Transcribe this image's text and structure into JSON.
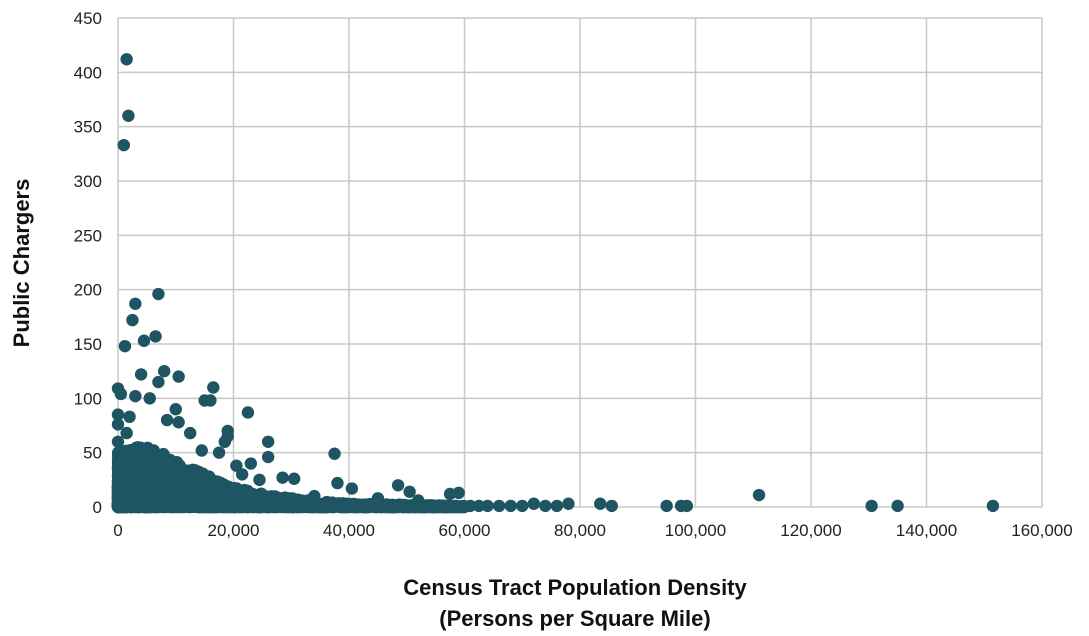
{
  "chart_data": {
    "type": "scatter",
    "title": "",
    "xlabel_lines": [
      "Census Tract Population Density",
      "(Persons per Square Mile)"
    ],
    "ylabel": "Public Chargers",
    "xlim": [
      0,
      160000
    ],
    "ylim": [
      0,
      450
    ],
    "x_ticks": [
      0,
      20000,
      40000,
      60000,
      80000,
      100000,
      120000,
      140000,
      160000
    ],
    "x_tick_labels": [
      "0",
      "20,000",
      "40,000",
      "60,000",
      "80,000",
      "100,000",
      "120,000",
      "140,000",
      "160,000"
    ],
    "y_ticks": [
      0,
      50,
      100,
      150,
      200,
      250,
      300,
      350,
      400,
      450
    ],
    "y_tick_labels": [
      "0",
      "50",
      "100",
      "150",
      "200",
      "250",
      "300",
      "350",
      "400",
      "450"
    ],
    "grid": true,
    "marker_color": "#1f5563",
    "series": [
      {
        "points": [
          [
            1500,
            412
          ],
          [
            1800,
            360
          ],
          [
            1000,
            333
          ],
          [
            3000,
            187
          ],
          [
            7000,
            196
          ],
          [
            2500,
            172
          ],
          [
            1200,
            148
          ],
          [
            4500,
            153
          ],
          [
            6500,
            157
          ],
          [
            8000,
            125
          ],
          [
            4000,
            122
          ],
          [
            10500,
            120
          ],
          [
            7000,
            115
          ],
          [
            16500,
            110
          ],
          [
            0,
            109
          ],
          [
            500,
            104
          ],
          [
            3000,
            102
          ],
          [
            5500,
            100
          ],
          [
            15000,
            98
          ],
          [
            16000,
            98
          ],
          [
            22500,
            87
          ],
          [
            10000,
            90
          ],
          [
            0,
            85
          ],
          [
            2000,
            83
          ],
          [
            0,
            76
          ],
          [
            8500,
            80
          ],
          [
            10500,
            78
          ],
          [
            19000,
            70
          ],
          [
            12500,
            68
          ],
          [
            26000,
            60
          ],
          [
            18500,
            60
          ],
          [
            19000,
            65
          ],
          [
            1500,
            68
          ],
          [
            0,
            60
          ],
          [
            14500,
            52
          ],
          [
            17500,
            50
          ],
          [
            37500,
            49
          ],
          [
            26000,
            46
          ],
          [
            23000,
            40
          ],
          [
            20500,
            38
          ],
          [
            14000,
            32
          ],
          [
            21500,
            30
          ],
          [
            24500,
            25
          ],
          [
            28500,
            27
          ],
          [
            30500,
            26
          ],
          [
            38000,
            22
          ],
          [
            40500,
            17
          ],
          [
            48500,
            20
          ],
          [
            50500,
            14
          ],
          [
            57500,
            12
          ],
          [
            59000,
            13
          ],
          [
            34000,
            10
          ],
          [
            45000,
            8
          ],
          [
            52000,
            6
          ],
          [
            3000,
            45
          ],
          [
            5000,
            40
          ],
          [
            7000,
            35
          ],
          [
            9000,
            30
          ],
          [
            11000,
            25
          ],
          [
            13000,
            20
          ],
          [
            2000,
            30
          ],
          [
            4000,
            25
          ],
          [
            6000,
            20
          ],
          [
            8000,
            15
          ],
          [
            10000,
            12
          ],
          [
            12000,
            10
          ],
          [
            15000,
            8
          ],
          [
            18000,
            6
          ],
          [
            21000,
            5
          ],
          [
            24000,
            4
          ],
          [
            27000,
            3
          ],
          [
            30000,
            3
          ],
          [
            33000,
            2
          ],
          [
            36000,
            2
          ],
          [
            39000,
            1
          ],
          [
            42000,
            1
          ],
          [
            46000,
            1
          ],
          [
            50000,
            1
          ],
          [
            54000,
            1
          ],
          [
            61000,
            1
          ],
          [
            62500,
            1
          ],
          [
            64000,
            1
          ],
          [
            66000,
            1
          ],
          [
            68000,
            1
          ],
          [
            70000,
            1
          ],
          [
            72000,
            3
          ],
          [
            74000,
            1
          ],
          [
            76000,
            1
          ],
          [
            78000,
            3
          ],
          [
            83500,
            3
          ],
          [
            85500,
            1
          ],
          [
            95000,
            1
          ],
          [
            97500,
            1
          ],
          [
            98500,
            1
          ],
          [
            111000,
            11
          ],
          [
            130500,
            1
          ],
          [
            135000,
            1
          ],
          [
            151500,
            1
          ]
        ]
      }
    ],
    "dense_cluster": {
      "x_range": [
        0,
        60000
      ],
      "y_max_by_x": [
        [
          0,
          50
        ],
        [
          5000,
          58
        ],
        [
          10000,
          42
        ],
        [
          15000,
          30
        ],
        [
          20000,
          18
        ],
        [
          25000,
          12
        ],
        [
          30000,
          8
        ],
        [
          35000,
          5
        ],
        [
          40000,
          3
        ],
        [
          50000,
          2
        ],
        [
          60000,
          1
        ]
      ]
    }
  }
}
